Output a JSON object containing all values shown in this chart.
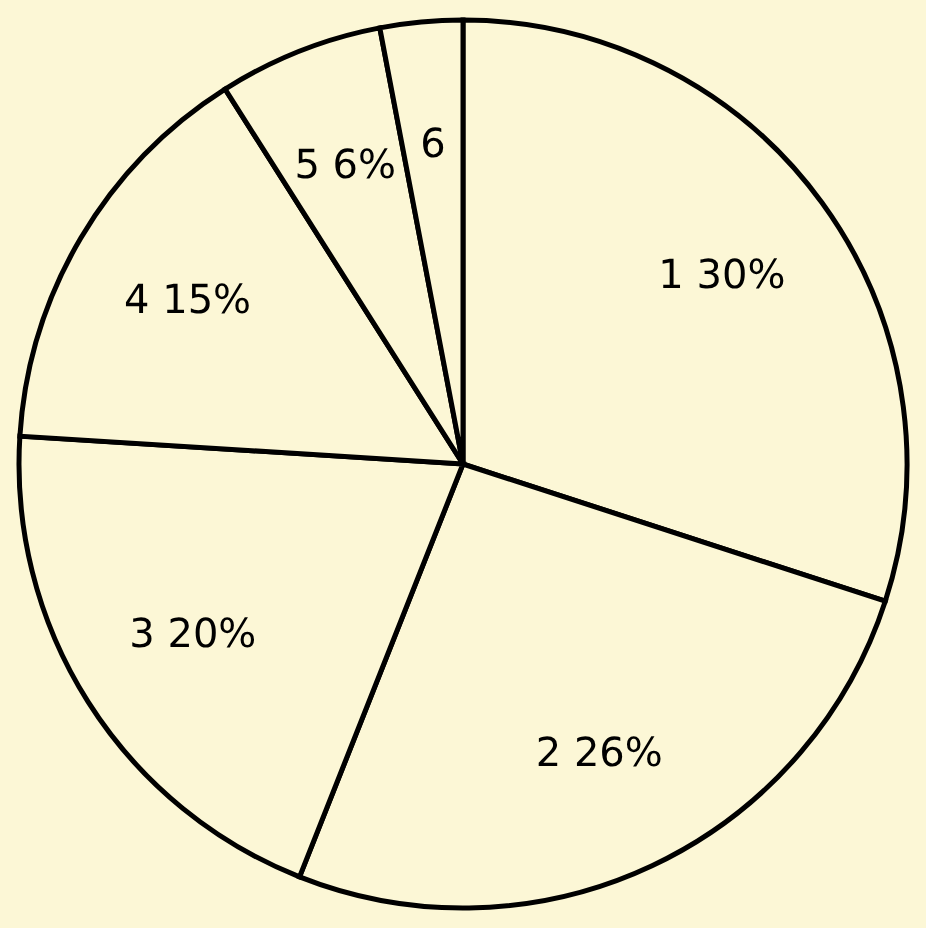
{
  "chart_data": {
    "type": "pie",
    "categories": [
      "1",
      "2",
      "3",
      "4",
      "5",
      "6"
    ],
    "values": [
      30,
      26,
      20,
      15,
      6,
      3
    ],
    "value_labels": [
      "30%",
      "26%",
      "20%",
      "15%",
      "6%",
      null
    ],
    "colors": [
      "#fcf7d6",
      "#fcf7d6",
      "#fcf7d6",
      "#fcf7d6",
      "#fcf7d6",
      "#fcf7d6"
    ]
  }
}
